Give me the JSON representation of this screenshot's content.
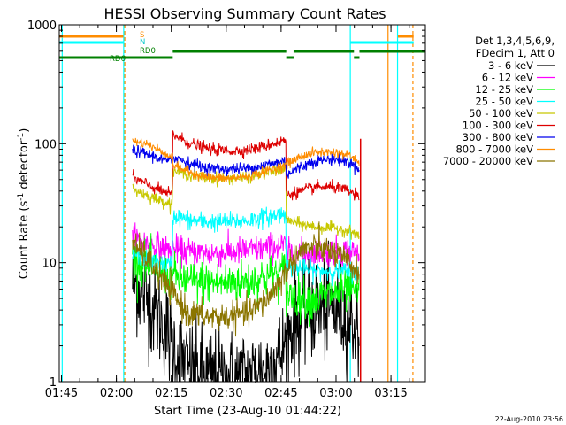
{
  "chart_data": {
    "type": "line",
    "title": "HESSI Observing Summary Count Rates",
    "xlabel": "Start Time (23-Aug-10 01:44:22)",
    "ylabel_main": "Count Rate (s",
    "ylabel_mid": " detector",
    "ylabel_end": ")",
    "ylabel_sup": "-1",
    "yscale": "log",
    "ylim": [
      1,
      1000
    ],
    "xlim_minutes": [
      0,
      100
    ],
    "x_tick_labels": [
      "01:45",
      "02:00",
      "02:15",
      "02:30",
      "02:45",
      "03:00",
      "03:15"
    ],
    "x_tick_minutes": [
      0.6,
      15.6,
      30.6,
      45.6,
      60.6,
      75.6,
      90.6
    ],
    "y_tick_labels": [
      "1",
      "10",
      "100",
      "1000"
    ],
    "y_tick_values": [
      1,
      10,
      100,
      1000
    ],
    "footer_date": "22-Aug-2010 23:56",
    "legend": {
      "header": [
        "Det 1,3,4,5,6,9,",
        "FDecim 1, Att 0"
      ],
      "entries": [
        {
          "label": "3 - 6 keV",
          "color": "#000000"
        },
        {
          "label": "6 - 12 keV",
          "color": "#ff00ff"
        },
        {
          "label": "12 - 25 keV",
          "color": "#00ff00"
        },
        {
          "label": "25 - 50 keV",
          "color": "#00ffff"
        },
        {
          "label": "50 - 100 keV",
          "color": "#c8c800"
        },
        {
          "label": "100 - 300 keV",
          "color": "#dd0000"
        },
        {
          "label": "300 - 800 keV",
          "color": "#0000ee"
        },
        {
          "label": "800 - 7000 keV",
          "color": "#ff8c00"
        },
        {
          "label": "7000 - 20000 keV",
          "color": "#8b7500"
        }
      ]
    },
    "flag_labels": {
      "S": "S",
      "N": "N",
      "RD0": "RD0",
      "RD6": "RD6"
    },
    "flag_bars": [
      {
        "name": "S",
        "color": "#ff8c00",
        "segments": [
          [
            0,
            17.5
          ],
          [
            92.5,
            96.8
          ]
        ],
        "level": 1
      },
      {
        "name": "N",
        "color": "#00ffff",
        "segments": [
          [
            0,
            17.5
          ],
          [
            79.5,
            96.8
          ]
        ],
        "level": 2
      },
      {
        "name": "RD0",
        "color": "#008000",
        "segments": [
          [
            31,
            62
          ],
          [
            64,
            80.5
          ],
          [
            82,
            100
          ]
        ],
        "level": 3
      },
      {
        "name": "RD6",
        "color": "#008000",
        "segments": [
          [
            0,
            31
          ],
          [
            62,
            64
          ],
          [
            80.5,
            82
          ]
        ],
        "level": 4
      }
    ],
    "vertical_lines": [
      {
        "x": 0.8,
        "color": "#00ffff",
        "style": "solid"
      },
      {
        "x": 17.6,
        "color": "#00ffff",
        "style": "solid"
      },
      {
        "x": 17.9,
        "color": "#ff8c00",
        "style": "dashed"
      },
      {
        "x": 79.5,
        "color": "#00ffff",
        "style": "solid"
      },
      {
        "x": 89.8,
        "color": "#ff8c00",
        "style": "solid"
      },
      {
        "x": 92.4,
        "color": "#00ffff",
        "style": "solid"
      },
      {
        "x": 96.6,
        "color": "#ff8c00",
        "style": "dashed"
      }
    ],
    "series": [
      {
        "name": "3 - 6 keV",
        "color": "#000000",
        "noise": 0.42,
        "points": [
          [
            20,
            7
          ],
          [
            23,
            5.5
          ],
          [
            26,
            4
          ],
          [
            29,
            2.8
          ],
          [
            31,
            2
          ],
          [
            35,
            1.3
          ],
          [
            40,
            1.1
          ],
          [
            46,
            1.05
          ],
          [
            52,
            1.1
          ],
          [
            57,
            1.3
          ],
          [
            61,
            1.8
          ],
          [
            63,
            2.7
          ],
          [
            66,
            3.5
          ],
          [
            70,
            4
          ],
          [
            75,
            4
          ],
          [
            79,
            3.5
          ],
          [
            82,
            2.8
          ]
        ]
      },
      {
        "name": "6 - 12 keV",
        "color": "#ff00ff",
        "noise": 0.12,
        "points": [
          [
            20,
            16
          ],
          [
            23,
            15
          ],
          [
            27,
            13.5
          ],
          [
            30.9,
            12.5
          ],
          [
            31,
            13
          ],
          [
            36,
            12.2
          ],
          [
            41,
            12
          ],
          [
            46,
            12.2
          ],
          [
            51,
            12.6
          ],
          [
            55,
            13
          ],
          [
            58,
            13.5
          ],
          [
            61.9,
            14
          ],
          [
            62,
            12
          ],
          [
            66,
            12
          ],
          [
            70,
            12.2
          ],
          [
            75,
            12.4
          ],
          [
            79,
            12.5
          ],
          [
            82,
            12
          ]
        ]
      },
      {
        "name": "12 - 25 keV",
        "color": "#00ff00",
        "noise": 0.18,
        "points": [
          [
            20,
            11
          ],
          [
            23,
            10
          ],
          [
            27,
            8.5
          ],
          [
            30,
            7.5
          ],
          [
            31,
            7.8
          ],
          [
            35,
            7
          ],
          [
            40,
            6.8
          ],
          [
            46,
            6.8
          ],
          [
            52,
            7
          ],
          [
            56,
            7.5
          ],
          [
            59,
            8
          ],
          [
            61.9,
            8.5
          ],
          [
            62,
            5.5
          ],
          [
            66,
            5
          ],
          [
            70,
            5
          ],
          [
            75,
            5.5
          ],
          [
            79,
            5.8
          ],
          [
            82,
            5.5
          ]
        ]
      },
      {
        "name": "25 - 50 keV",
        "color": "#00ffff",
        "noise": 0.08,
        "points": [
          [
            20,
            12
          ],
          [
            23,
            11
          ],
          [
            27,
            10
          ],
          [
            30.9,
            9.5
          ],
          [
            31,
            25
          ],
          [
            36,
            22.5
          ],
          [
            41,
            22
          ],
          [
            46,
            22
          ],
          [
            51,
            22.5
          ],
          [
            56,
            24
          ],
          [
            61.9,
            26
          ],
          [
            62,
            9
          ],
          [
            66,
            9
          ],
          [
            70,
            8.5
          ],
          [
            75,
            8.5
          ],
          [
            79,
            8.5
          ],
          [
            82,
            8
          ]
        ]
      },
      {
        "name": "50 - 100 keV",
        "color": "#c8c800",
        "noise": 0.05,
        "points": [
          [
            20,
            42
          ],
          [
            23,
            38
          ],
          [
            27,
            34
          ],
          [
            30.9,
            31
          ],
          [
            31,
            60
          ],
          [
            36,
            54
          ],
          [
            41,
            51
          ],
          [
            46,
            51
          ],
          [
            51,
            52
          ],
          [
            56,
            56
          ],
          [
            61.9,
            62
          ],
          [
            62,
            23
          ],
          [
            66,
            21
          ],
          [
            70,
            20
          ],
          [
            75,
            19.5
          ],
          [
            79,
            18.5
          ],
          [
            82,
            17
          ]
        ]
      },
      {
        "name": "100 - 300 keV",
        "color": "#dd0000",
        "noise": 0.05,
        "points": [
          [
            20,
            52
          ],
          [
            23,
            47
          ],
          [
            27,
            41
          ],
          [
            30.9,
            37
          ],
          [
            31,
            120
          ],
          [
            36,
            100
          ],
          [
            41,
            90
          ],
          [
            46,
            87
          ],
          [
            51,
            88
          ],
          [
            56,
            95
          ],
          [
            61.9,
            108
          ],
          [
            62,
            37
          ],
          [
            66,
            40
          ],
          [
            70,
            43
          ],
          [
            75,
            43
          ],
          [
            79,
            40
          ],
          [
            82,
            35
          ]
        ]
      },
      {
        "name": "300 - 800 keV",
        "color": "#0000ee",
        "noise": 0.05,
        "points": [
          [
            20,
            88
          ],
          [
            24,
            82
          ],
          [
            28,
            74
          ],
          [
            30.9,
            70
          ],
          [
            31,
            78
          ],
          [
            36,
            68
          ],
          [
            41,
            62
          ],
          [
            46,
            61
          ],
          [
            51,
            62
          ],
          [
            56,
            66
          ],
          [
            61.9,
            72
          ],
          [
            62,
            55
          ],
          [
            66,
            64
          ],
          [
            70,
            72
          ],
          [
            75,
            74
          ],
          [
            79,
            70
          ],
          [
            82,
            63
          ]
        ]
      },
      {
        "name": "800 - 7000 keV",
        "color": "#ff8c00",
        "noise": 0.04,
        "points": [
          [
            20,
            105
          ],
          [
            24,
            100
          ],
          [
            28,
            86
          ],
          [
            30.9,
            76
          ],
          [
            31,
            67
          ],
          [
            36,
            57
          ],
          [
            41,
            52
          ],
          [
            46,
            51
          ],
          [
            51,
            53
          ],
          [
            56,
            58
          ],
          [
            61.9,
            66
          ],
          [
            62,
            67
          ],
          [
            66,
            78
          ],
          [
            70,
            85
          ],
          [
            75,
            85
          ],
          [
            79,
            80
          ],
          [
            82,
            70
          ]
        ]
      },
      {
        "name": "7000 - 20000 keV",
        "color": "#8b7500",
        "noise": 0.12,
        "points": [
          [
            20,
            14
          ],
          [
            23,
            12
          ],
          [
            26,
            9
          ],
          [
            29,
            6.5
          ],
          [
            32,
            5
          ],
          [
            35,
            3.8
          ],
          [
            40,
            3.5
          ],
          [
            46,
            3.5
          ],
          [
            52,
            3.8
          ],
          [
            57,
            5
          ],
          [
            61,
            7.5
          ],
          [
            64,
            11
          ],
          [
            67,
            13
          ],
          [
            71,
            13.5
          ],
          [
            75,
            12
          ],
          [
            79,
            10
          ],
          [
            82,
            8
          ]
        ]
      }
    ],
    "spike": {
      "x": 82.3,
      "color": "#dd0000",
      "from": 1,
      "to": 110
    },
    "grid": false
  }
}
